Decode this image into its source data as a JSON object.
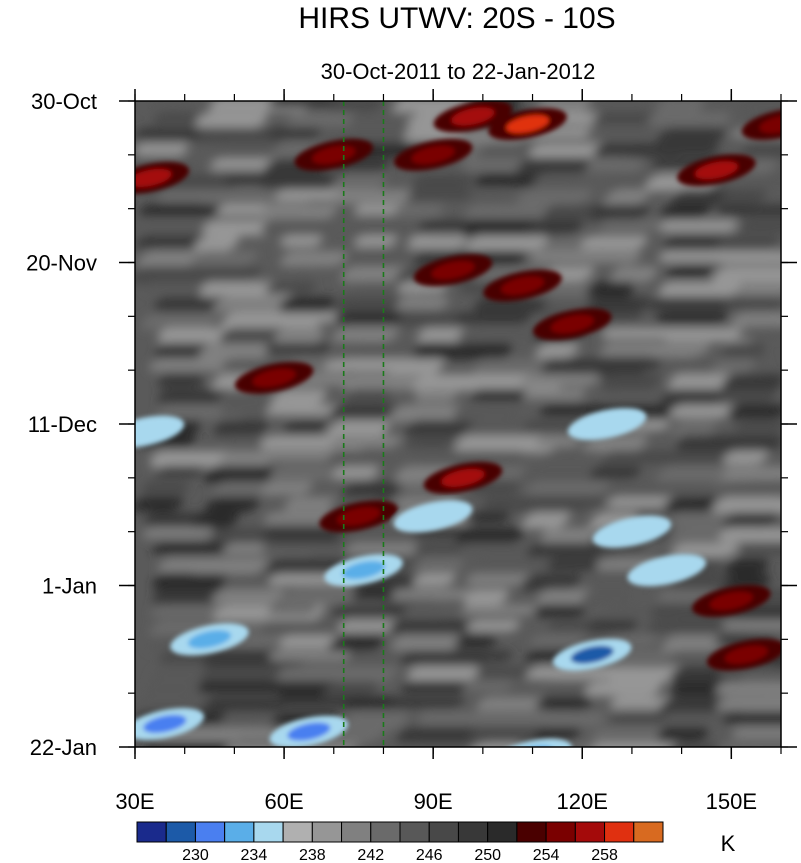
{
  "chart_data": {
    "type": "heatmap",
    "title": "HIRS UTWV: 20S - 10S",
    "subtitle": "30-Oct-2011 to 22-Jan-2012",
    "x_range": [
      30,
      160
    ],
    "x_ticks": [
      {
        "value": 30,
        "label": "30E"
      },
      {
        "value": 60,
        "label": "60E"
      },
      {
        "value": 90,
        "label": "90E"
      },
      {
        "value": 120,
        "label": "120E"
      },
      {
        "value": 150,
        "label": "150E"
      }
    ],
    "y_range_days": [
      0,
      84
    ],
    "y_ticks": [
      {
        "day": 0,
        "label": "30-Oct"
      },
      {
        "day": 21,
        "label": "20-Nov"
      },
      {
        "day": 42,
        "label": "11-Dec"
      },
      {
        "day": 63,
        "label": "1-Jan"
      },
      {
        "day": 84,
        "label": "22-Jan"
      }
    ],
    "reference_lines_lon": [
      72,
      80
    ],
    "colorbar": {
      "unit": "K",
      "levels": [
        228,
        230,
        232,
        234,
        236,
        238,
        240,
        242,
        244,
        246,
        248,
        250,
        252,
        254,
        256,
        258
      ],
      "labels": [
        230,
        234,
        238,
        242,
        246,
        250,
        254,
        258
      ],
      "colors": [
        "#1a2a8c",
        "#1c5aa8",
        "#4a7ff0",
        "#5aaee8",
        "#a8d8ee",
        "#b0b0b0",
        "#969696",
        "#808080",
        "#6a6a6a",
        "#585858",
        "#484848",
        "#383838",
        "#2a2a2a",
        "#4a0000",
        "#7a0000",
        "#a40a0a",
        "#e03010",
        "#d86a20"
      ]
    },
    "features": [
      {
        "kind": "warm",
        "lon": 109,
        "day": 3,
        "value": 260
      },
      {
        "kind": "warm",
        "lon": 98,
        "day": 2,
        "value": 257
      },
      {
        "kind": "warm",
        "lon": 33,
        "day": 10,
        "value": 256
      },
      {
        "kind": "warm",
        "lon": 70,
        "day": 7,
        "value": 255
      },
      {
        "kind": "warm",
        "lon": 90,
        "day": 7,
        "value": 254
      },
      {
        "kind": "warm",
        "lon": 147,
        "day": 9,
        "value": 256
      },
      {
        "kind": "warm",
        "lon": 160,
        "day": 3,
        "value": 255
      },
      {
        "kind": "warm",
        "lon": 94,
        "day": 22,
        "value": 254
      },
      {
        "kind": "warm",
        "lon": 108,
        "day": 24,
        "value": 254
      },
      {
        "kind": "warm",
        "lon": 118,
        "day": 29,
        "value": 254
      },
      {
        "kind": "warm",
        "lon": 58,
        "day": 36,
        "value": 254
      },
      {
        "kind": "warm",
        "lon": 96,
        "day": 49,
        "value": 256
      },
      {
        "kind": "warm",
        "lon": 75,
        "day": 54,
        "value": 255
      },
      {
        "kind": "warm",
        "lon": 153,
        "day": 72,
        "value": 255
      },
      {
        "kind": "warm",
        "lon": 150,
        "day": 65,
        "value": 254
      },
      {
        "kind": "cold",
        "lon": 122,
        "day": 72,
        "value": 229
      },
      {
        "kind": "cold",
        "lon": 36,
        "day": 81,
        "value": 231
      },
      {
        "kind": "cold",
        "lon": 45,
        "day": 70,
        "value": 233
      },
      {
        "kind": "cold",
        "lon": 65,
        "day": 82,
        "value": 230
      },
      {
        "kind": "cold",
        "lon": 76,
        "day": 61,
        "value": 233
      },
      {
        "kind": "cold",
        "lon": 130,
        "day": 56,
        "value": 234
      },
      {
        "kind": "cold",
        "lon": 137,
        "day": 61,
        "value": 235
      },
      {
        "kind": "cold",
        "lon": 90,
        "day": 54,
        "value": 235
      },
      {
        "kind": "cold",
        "lon": 125,
        "day": 42,
        "value": 234
      },
      {
        "kind": "cold",
        "lon": 32,
        "day": 43,
        "value": 235
      },
      {
        "kind": "cold",
        "lon": 110,
        "day": 85,
        "value": 233
      }
    ]
  }
}
